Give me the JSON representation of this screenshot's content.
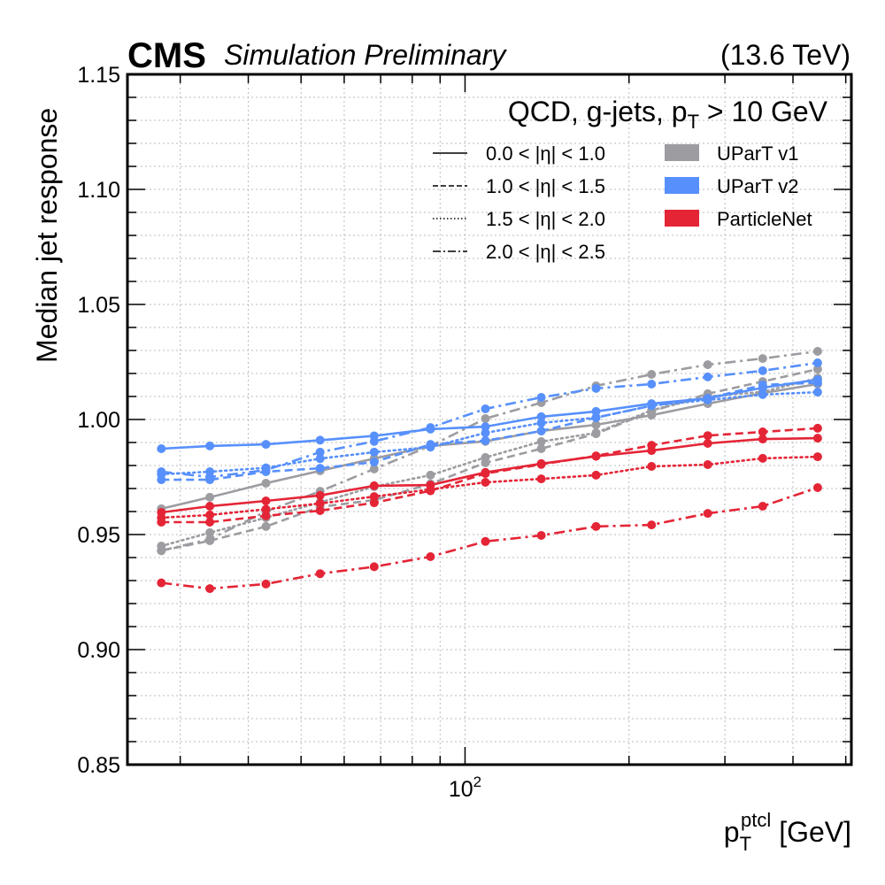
{
  "chart_data": {
    "type": "line",
    "title": "",
    "header": {
      "experiment": "CMS",
      "status": "Simulation Preliminary",
      "energy": "(13.6 TeV)"
    },
    "annotation": {
      "text_main": "QCD, g-jets, p",
      "text_sub": "T",
      "text_tail": " > 10 GeV"
    },
    "xlabel": {
      "main": "p",
      "sub": "T",
      "sup": "ptcl",
      "tail": " [GeV]"
    },
    "ylabel": "Median jet response",
    "xscale": "log",
    "xlim": [
      24,
      512
    ],
    "ylim": [
      0.85,
      1.15
    ],
    "grid": true,
    "legend_placement": "top-right",
    "x_tick_labels": [
      {
        "value": 100,
        "base": "10",
        "exp": "2"
      }
    ],
    "x_minor_ticks": [
      30,
      40,
      50,
      60,
      70,
      80,
      90,
      200,
      300,
      400,
      500
    ],
    "y_ticks": [
      0.85,
      0.9,
      0.95,
      1.0,
      1.05,
      1.1,
      1.15
    ],
    "y_tick_labels": [
      "0.85",
      "0.90",
      "0.95",
      "1.00",
      "1.05",
      "1.10",
      "1.15"
    ],
    "y_minor_step": 0.01,
    "x": [
      27.7,
      34.0,
      43.1,
      54.2,
      68.1,
      86.4,
      109,
      138,
      174,
      220,
      279,
      352,
      444
    ],
    "linestyles": [
      {
        "key": "solid",
        "label": "0.0 < |η| < 1.0"
      },
      {
        "key": "dashed",
        "label": "1.0 < |η| < 1.5"
      },
      {
        "key": "dotted",
        "label": "1.5 < |η| < 2.0"
      },
      {
        "key": "dashdot",
        "label": "2.0 < |η| < 2.5"
      }
    ],
    "models": [
      {
        "name": "UParT v1",
        "color": "#9c9ca1"
      },
      {
        "name": "UParT v2",
        "color": "#5790fc"
      },
      {
        "name": "ParticleNet",
        "color": "#e42536"
      }
    ],
    "series": [
      {
        "name": "UParT v1, 0.0 < |η| < 1.0",
        "model": "UParT v1",
        "linestyle": "solid",
        "values": [
          0.9612,
          0.9662,
          0.9723,
          0.9777,
          0.983,
          0.9885,
          0.9905,
          0.995,
          0.9977,
          1.0019,
          1.0069,
          1.0115,
          1.0154
        ]
      },
      {
        "name": "UParT v1, 1.0 < |η| < 1.5",
        "model": "UParT v1",
        "linestyle": "dashed",
        "values": [
          0.943,
          0.9473,
          0.9535,
          0.962,
          0.965,
          0.972,
          0.9812,
          0.9873,
          0.9938,
          1.0035,
          1.0112,
          1.0165,
          1.0219
        ]
      },
      {
        "name": "UParT v1, 1.5 < |η| < 2.0",
        "model": "UParT v1",
        "linestyle": "dotted",
        "values": [
          0.945,
          0.9508,
          0.9573,
          0.964,
          0.9708,
          0.9758,
          0.9835,
          0.9904,
          0.9942,
          1.004,
          1.01,
          1.012,
          1.018
        ]
      },
      {
        "name": "UParT v1, 2.0 < |η| < 2.5",
        "model": "UParT v1",
        "linestyle": "dashdot",
        "values": [
          0.943,
          0.948,
          0.96,
          0.9688,
          0.9785,
          0.9885,
          1.0004,
          1.0073,
          1.0146,
          1.0196,
          1.0238,
          1.0265,
          1.0296
        ]
      },
      {
        "name": "UParT v2, 0.0 < |η| < 1.0",
        "model": "UParT v2",
        "linestyle": "solid",
        "values": [
          0.9873,
          0.9885,
          0.9892,
          0.991,
          0.9929,
          0.9958,
          0.9969,
          1.0012,
          1.0035,
          1.0069,
          1.0092,
          1.0138,
          1.0173
        ]
      },
      {
        "name": "UParT v2, 1.0 < |η| < 1.5",
        "model": "UParT v2",
        "linestyle": "dashed",
        "values": [
          0.9738,
          0.9738,
          0.9773,
          0.9788,
          0.9815,
          0.9892,
          0.9908,
          0.995,
          1.0008,
          1.006,
          1.0092,
          1.015,
          1.016
        ]
      },
      {
        "name": "UParT v2, 1.5 < |η| < 2.0",
        "model": "UParT v2",
        "linestyle": "dotted",
        "values": [
          0.9762,
          0.9773,
          0.979,
          0.983,
          0.9858,
          0.988,
          0.9942,
          0.9985,
          1.0008,
          1.006,
          1.0085,
          1.0108,
          1.0119
        ]
      },
      {
        "name": "UParT v2, 2.0 < |η| < 2.5",
        "model": "UParT v2",
        "linestyle": "dashdot",
        "values": [
          0.9773,
          0.975,
          0.978,
          0.9858,
          0.9905,
          0.9965,
          1.0046,
          1.0096,
          1.0135,
          1.0154,
          1.0185,
          1.0212,
          1.0246
        ]
      },
      {
        "name": "ParticleNet, 0.0 < |η| < 1.0",
        "model": "ParticleNet",
        "linestyle": "solid",
        "values": [
          0.9596,
          0.9623,
          0.9646,
          0.967,
          0.9712,
          0.9715,
          0.977,
          0.9808,
          0.984,
          0.9865,
          0.9896,
          0.9915,
          0.9919
        ]
      },
      {
        "name": "ParticleNet, 1.0 < |η| < 1.5",
        "model": "ParticleNet",
        "linestyle": "dashed",
        "values": [
          0.9554,
          0.9554,
          0.9581,
          0.9604,
          0.9638,
          0.969,
          0.9765,
          0.9805,
          0.9842,
          0.9888,
          0.993,
          0.9946,
          0.9962
        ]
      },
      {
        "name": "ParticleNet, 1.5 < |η| < 2.0",
        "model": "ParticleNet",
        "linestyle": "dotted",
        "values": [
          0.9573,
          0.9585,
          0.961,
          0.9635,
          0.9665,
          0.9696,
          0.9727,
          0.9742,
          0.9758,
          0.9796,
          0.9804,
          0.9831,
          0.9838
        ]
      },
      {
        "name": "ParticleNet, 2.0 < |η| < 2.5",
        "model": "ParticleNet",
        "linestyle": "dashdot",
        "values": [
          0.929,
          0.9265,
          0.9285,
          0.933,
          0.936,
          0.9404,
          0.947,
          0.9496,
          0.9535,
          0.9542,
          0.9592,
          0.9623,
          0.9704
        ]
      }
    ]
  }
}
